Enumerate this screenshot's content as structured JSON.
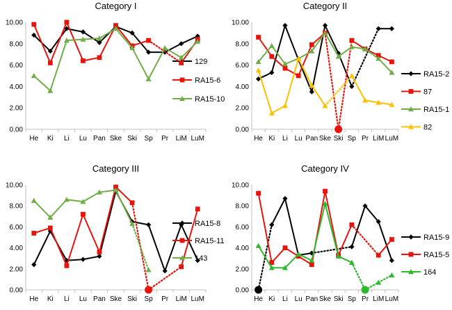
{
  "chart_data": [
    {
      "type": "line",
      "title": "Category I",
      "categories": [
        "He",
        "Ki",
        "Li",
        "Lu",
        "Pan",
        "Ske",
        "Ski",
        "Sp",
        "Pr",
        "LiM",
        "LuM"
      ],
      "ylim": [
        0,
        10
      ],
      "yticks": [
        "0.00",
        "2.00",
        "4.00",
        "6.00",
        "8.00",
        "10.00"
      ],
      "legend_position": "right",
      "series": [
        {
          "name": "129",
          "color": "#000000",
          "marker": "diamond",
          "values": [
            8.8,
            7.3,
            9.4,
            9.1,
            8.1,
            9.6,
            9.0,
            7.2,
            7.2,
            8.0,
            8.7
          ],
          "dotted_segments": []
        },
        {
          "name": "RA15-6",
          "color": "#e8140c",
          "marker": "square",
          "values": [
            9.8,
            6.2,
            10.0,
            6.4,
            6.7,
            9.7,
            7.8,
            8.3,
            null,
            6.2,
            8.4
          ],
          "dotted_segments": [
            [
              7,
              9
            ]
          ]
        },
        {
          "name": "RA15-10",
          "color": "#70ad47",
          "marker": "triangle",
          "values": [
            5.0,
            3.6,
            8.3,
            8.4,
            8.5,
            9.4,
            7.6,
            4.7,
            7.6,
            6.7,
            8.2
          ],
          "dotted_segments": []
        }
      ]
    },
    {
      "type": "line",
      "title": "Category II",
      "categories": [
        "He",
        "Ki",
        "Li",
        "Lu",
        "Pan",
        "Ske",
        "Ski",
        "Sp",
        "Pr",
        "LiM",
        "LuM"
      ],
      "ylim": [
        0,
        10
      ],
      "yticks": [
        "0.00",
        "2.00",
        "4.00",
        "6.00",
        "8.00",
        "10.00"
      ],
      "legend_position": "right",
      "series": [
        {
          "name": "RA15-2",
          "color": "#000000",
          "marker": "diamond",
          "values": [
            4.7,
            5.3,
            9.7,
            6.5,
            3.5,
            9.7,
            7.1,
            4.0,
            null,
            9.4,
            9.4
          ],
          "dotted_segments": [
            [
              7,
              9
            ]
          ]
        },
        {
          "name": "87",
          "color": "#e8140c",
          "marker": "square",
          "values": [
            8.6,
            6.8,
            5.7,
            5.0,
            7.9,
            9.0,
            0.0,
            8.3,
            7.5,
            6.9,
            6.3
          ],
          "dotted_segments": [
            [
              5,
              6
            ],
            [
              6,
              7
            ]
          ],
          "highlight_point": {
            "index": 6,
            "value": 0.0
          }
        },
        {
          "name": "RA15-1",
          "color": "#70ad47",
          "marker": "triangle",
          "values": [
            6.3,
            7.8,
            6.1,
            6.6,
            7.3,
            9.0,
            6.8,
            7.7,
            7.5,
            6.6,
            5.3
          ],
          "dotted_segments": []
        },
        {
          "name": "82",
          "color": "#ffc000",
          "marker": "triangle",
          "values": [
            5.5,
            1.5,
            2.2,
            6.6,
            4.1,
            2.2,
            null,
            5.0,
            2.7,
            2.5,
            2.3
          ],
          "dotted_segments": [
            [
              5,
              7
            ]
          ]
        }
      ]
    },
    {
      "type": "line",
      "title": "Category III",
      "categories": [
        "He",
        "Ki",
        "Li",
        "Lu",
        "Pan",
        "Ske",
        "Ski",
        "Sp",
        "Pr",
        "LiM",
        "LuM"
      ],
      "ylim": [
        0,
        10
      ],
      "yticks": [
        "0.00",
        "2.00",
        "4.00",
        "6.00",
        "8.00",
        "10.00"
      ],
      "legend_position": "right",
      "series": [
        {
          "name": "RA15-8",
          "color": "#000000",
          "marker": "diamond",
          "values": [
            2.4,
            5.6,
            2.8,
            2.9,
            3.2,
            9.4,
            6.5,
            6.2,
            1.8,
            6.2,
            2.8
          ],
          "dotted_segments": []
        },
        {
          "name": "RA15-11",
          "color": "#e8140c",
          "marker": "square",
          "values": [
            5.4,
            5.9,
            2.3,
            7.2,
            3.6,
            9.8,
            8.3,
            0.0,
            null,
            2.2,
            7.7
          ],
          "dotted_segments": [
            [
              6,
              7
            ],
            [
              7,
              9
            ]
          ],
          "highlight_point": {
            "index": 7,
            "value": 0.0
          }
        },
        {
          "name": "143",
          "color": "#70ad47",
          "marker": "triangle",
          "values": [
            8.5,
            6.9,
            8.6,
            8.4,
            9.3,
            9.5,
            6.3,
            1.9,
            null,
            null,
            null
          ],
          "dotted_segments": [
            [
              6,
              7
            ]
          ]
        }
      ]
    },
    {
      "type": "line",
      "title": "Category IV",
      "categories": [
        "He",
        "Ki",
        "Li",
        "Lu",
        "Pan",
        "Ske",
        "Ski",
        "Sp",
        "Pr",
        "LiM",
        "LuM"
      ],
      "ylim": [
        0,
        10
      ],
      "yticks": [
        "0.00",
        "2.00",
        "4.00",
        "6.00",
        "8.00",
        "10.00"
      ],
      "legend_position": "right",
      "series": [
        {
          "name": "RA15-9",
          "color": "#000000",
          "marker": "diamond",
          "values": [
            0.0,
            6.2,
            8.7,
            3.3,
            3.5,
            null,
            null,
            4.1,
            8.0,
            6.5,
            2.8
          ],
          "dotted_segments": [
            [
              0,
              1
            ],
            [
              4,
              7
            ]
          ],
          "highlight_point": {
            "index": 0,
            "value": 0.0
          }
        },
        {
          "name": "RA15-5",
          "color": "#e8140c",
          "marker": "square",
          "values": [
            9.2,
            2.6,
            4.0,
            3.2,
            2.4,
            9.4,
            3.3,
            6.2,
            null,
            3.3,
            4.8
          ],
          "dotted_segments": [
            [
              7,
              9
            ]
          ]
        },
        {
          "name": "164",
          "color": "#2db82d",
          "marker": "triangle",
          "values": [
            4.2,
            2.1,
            2.1,
            3.4,
            2.8,
            8.2,
            3.2,
            2.6,
            0.0,
            0.7,
            1.4
          ],
          "dotted_segments": [
            [
              7,
              8
            ],
            [
              8,
              9
            ],
            [
              9,
              10
            ]
          ],
          "highlight_point": {
            "index": 8,
            "value": 0.0
          }
        }
      ]
    }
  ]
}
